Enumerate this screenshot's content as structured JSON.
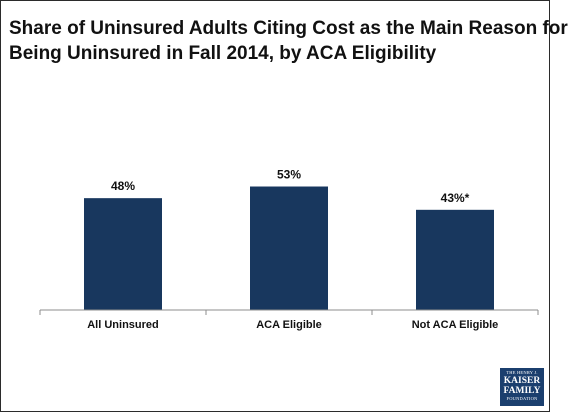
{
  "title_lines": [
    "Share of Uninsured Adults Citing Cost as the Main Reason for",
    "Being Uninsured in Fall 2014, by ACA Eligibility"
  ],
  "logo": {
    "line1": "THE HENRY J.",
    "line2": "KAISER",
    "line3": "FAMILY",
    "line4": "FOUNDATION"
  },
  "colors": {
    "bar": "#18375e",
    "axis": "#8c8c8c",
    "text": "#111111"
  },
  "chart_data": {
    "type": "bar",
    "title": "Share of Uninsured Adults Citing Cost as the Main Reason for Being Uninsured in Fall 2014, by ACA Eligibility",
    "categories": [
      "All Uninsured",
      "ACA Eligible",
      "Not ACA Eligible"
    ],
    "values": [
      48,
      53,
      43
    ],
    "data_labels": [
      "48%",
      "53%",
      "43%*"
    ],
    "ylim": [
      0,
      100
    ],
    "grid": false,
    "legend": "none",
    "xlabel": "",
    "ylabel": ""
  }
}
